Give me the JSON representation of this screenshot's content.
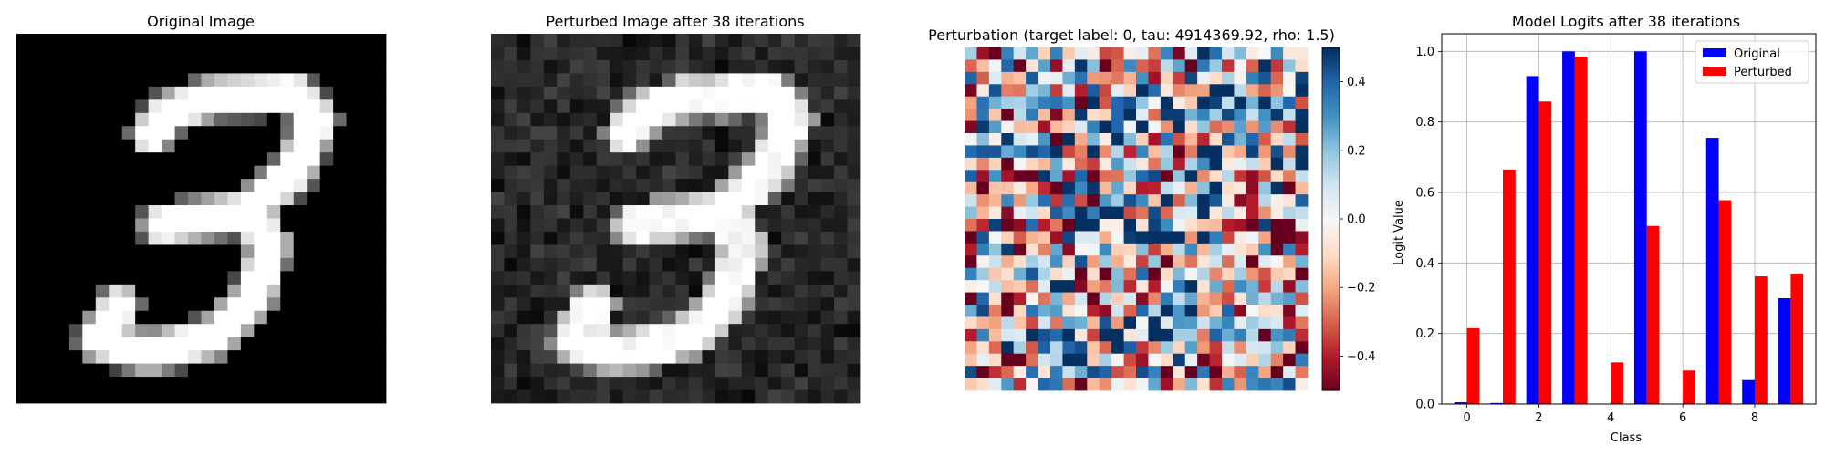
{
  "panels": {
    "original": {
      "title": "Original Image"
    },
    "perturbed": {
      "title": "Perturbed Image after 38 iterations"
    },
    "perturbation": {
      "title": "Perturbation (target label: 0, tau: 4914369.92, rho: 1.5)",
      "colormap": "RdBu",
      "colorbar_ticks": [
        "0.4",
        "0.2",
        "0.0",
        "−0.2",
        "−0.4"
      ],
      "colorbar_tick_values": [
        0.4,
        0.2,
        0.0,
        -0.2,
        -0.4
      ],
      "colorbar_range": [
        -0.5,
        0.5
      ]
    }
  },
  "chart_data": {
    "type": "bar",
    "title": "Model Logits after 38 iterations",
    "xlabel": "Class",
    "ylabel": "Logit Value",
    "categories": [
      0,
      1,
      2,
      3,
      4,
      5,
      6,
      7,
      8,
      9
    ],
    "xticks": [
      "0",
      "2",
      "4",
      "6",
      "8"
    ],
    "xtick_values": [
      0,
      2,
      4,
      6,
      8
    ],
    "yticks": [
      "0.0",
      "0.2",
      "0.4",
      "0.6",
      "0.8",
      "1.0"
    ],
    "ytick_values": [
      0.0,
      0.2,
      0.4,
      0.6,
      0.8,
      1.0
    ],
    "ylim": [
      0,
      1.05
    ],
    "xlim": [
      -0.7,
      9.7
    ],
    "grid": true,
    "legend_position": "top-right",
    "series": [
      {
        "name": "Original",
        "color": "#0000ff",
        "values": [
          0.005,
          0.003,
          0.93,
          1.0,
          0.0,
          1.0,
          0.0,
          0.755,
          0.068,
          0.3
        ]
      },
      {
        "name": "Perturbed",
        "color": "#ff0000",
        "values": [
          0.215,
          0.665,
          0.858,
          0.985,
          0.118,
          0.505,
          0.095,
          0.578,
          0.362,
          0.37
        ]
      }
    ]
  }
}
